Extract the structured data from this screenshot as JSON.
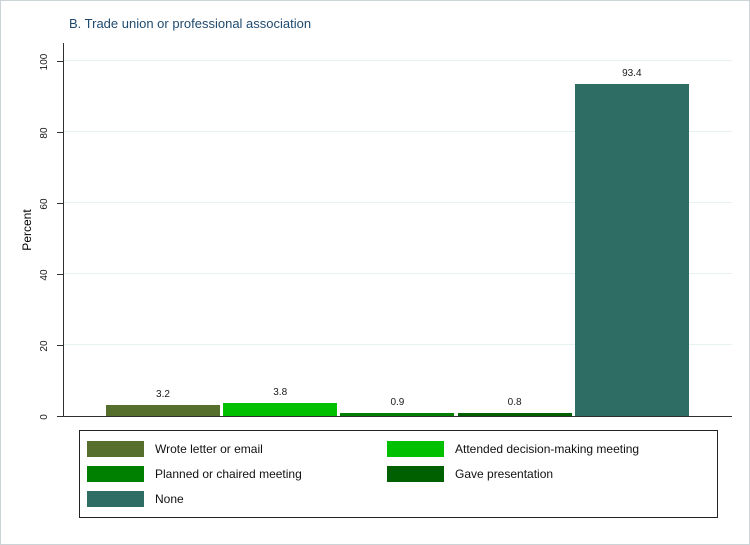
{
  "title": "B. Trade union or professional association",
  "chart_data": {
    "type": "bar",
    "title": "B. Trade union or professional association",
    "xlabel": "",
    "ylabel": "Percent",
    "ylim": [
      0,
      100
    ],
    "yticks": [
      0,
      20,
      40,
      60,
      80,
      100
    ],
    "grid": true,
    "legend_position": "bottom",
    "categories": [
      "Wrote letter or email",
      "Attended decision-making meeting",
      "Planned or chaired meeting",
      "Gave presentation",
      "None"
    ],
    "values": [
      3.2,
      3.8,
      0.9,
      0.8,
      93.4
    ],
    "value_labels": [
      "3.2",
      "3.8",
      "0.9",
      "0.8",
      "93.4"
    ],
    "bar_colors": [
      "#566f2d",
      "#00c000",
      "#008000",
      "#006000",
      "#2d6d64"
    ]
  },
  "legend": {
    "items": [
      {
        "label": "Wrote letter or email",
        "color": "#566f2d"
      },
      {
        "label": "Attended decision-making meeting",
        "color": "#00c000"
      },
      {
        "label": "Planned or chaired meeting",
        "color": "#008000"
      },
      {
        "label": "Gave presentation",
        "color": "#006000"
      },
      {
        "label": "None",
        "color": "#2d6d64"
      }
    ]
  },
  "colors": {
    "title_text": "#1f4a6e",
    "axis": "#303030",
    "gridline": "#e7f1f2",
    "label_text": "#1a1a1a",
    "legend_border": "#222222",
    "background": "#ffffff"
  }
}
